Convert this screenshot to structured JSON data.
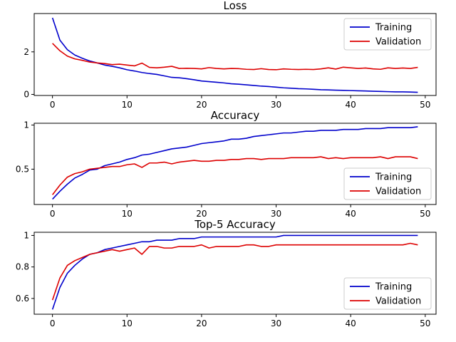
{
  "chart_data": [
    {
      "type": "line",
      "title": "Loss",
      "xlabel": "",
      "ylabel": "",
      "xlim": [
        -2.45,
        51.45
      ],
      "ylim": [
        -0.05,
        3.8
      ],
      "xticks": [
        0,
        10,
        20,
        30,
        40,
        50
      ],
      "yticks": [
        0,
        2
      ],
      "legend_position": "upper right",
      "grid": false,
      "series": [
        {
          "name": "Training",
          "color": "#0000cc",
          "x": [
            0,
            1,
            2,
            3,
            4,
            5,
            6,
            7,
            8,
            9,
            10,
            11,
            12,
            13,
            14,
            15,
            16,
            17,
            18,
            19,
            20,
            21,
            22,
            23,
            24,
            25,
            26,
            27,
            28,
            29,
            30,
            31,
            32,
            33,
            34,
            35,
            36,
            37,
            38,
            39,
            40,
            41,
            42,
            43,
            44,
            45,
            46,
            47,
            48,
            49
          ],
          "values": [
            3.6,
            2.55,
            2.1,
            1.85,
            1.7,
            1.57,
            1.48,
            1.38,
            1.32,
            1.25,
            1.16,
            1.1,
            1.03,
            0.98,
            0.94,
            0.87,
            0.8,
            0.78,
            0.74,
            0.69,
            0.63,
            0.6,
            0.57,
            0.54,
            0.5,
            0.48,
            0.45,
            0.42,
            0.39,
            0.37,
            0.34,
            0.31,
            0.29,
            0.27,
            0.26,
            0.24,
            0.22,
            0.21,
            0.2,
            0.19,
            0.18,
            0.17,
            0.16,
            0.15,
            0.14,
            0.13,
            0.12,
            0.12,
            0.11,
            0.1
          ]
        },
        {
          "name": "Validation",
          "color": "#dd0000",
          "x": [
            0,
            1,
            2,
            3,
            4,
            5,
            6,
            7,
            8,
            9,
            10,
            11,
            12,
            13,
            14,
            15,
            16,
            17,
            18,
            19,
            20,
            21,
            22,
            23,
            24,
            25,
            26,
            27,
            28,
            29,
            30,
            31,
            32,
            33,
            34,
            35,
            36,
            37,
            38,
            39,
            40,
            41,
            42,
            43,
            44,
            45,
            46,
            47,
            48,
            49
          ],
          "values": [
            2.4,
            2.05,
            1.8,
            1.67,
            1.6,
            1.52,
            1.48,
            1.45,
            1.4,
            1.42,
            1.38,
            1.34,
            1.47,
            1.27,
            1.25,
            1.28,
            1.32,
            1.22,
            1.23,
            1.22,
            1.2,
            1.26,
            1.22,
            1.2,
            1.22,
            1.21,
            1.18,
            1.17,
            1.21,
            1.17,
            1.16,
            1.2,
            1.18,
            1.17,
            1.18,
            1.17,
            1.2,
            1.25,
            1.19,
            1.28,
            1.25,
            1.22,
            1.24,
            1.2,
            1.18,
            1.25,
            1.22,
            1.24,
            1.22,
            1.27
          ]
        }
      ]
    },
    {
      "type": "line",
      "title": "Accuracy",
      "xlabel": "",
      "ylabel": "",
      "xlim": [
        -2.45,
        51.45
      ],
      "ylim": [
        0.1,
        1.02
      ],
      "xticks": [
        0,
        10,
        20,
        30,
        40,
        50
      ],
      "yticks": [
        0.5,
        1.0
      ],
      "legend_position": "lower right",
      "grid": false,
      "series": [
        {
          "name": "Training",
          "color": "#0000cc",
          "x": [
            0,
            1,
            2,
            3,
            4,
            5,
            6,
            7,
            8,
            9,
            10,
            11,
            12,
            13,
            14,
            15,
            16,
            17,
            18,
            19,
            20,
            21,
            22,
            23,
            24,
            25,
            26,
            27,
            28,
            29,
            30,
            31,
            32,
            33,
            34,
            35,
            36,
            37,
            38,
            39,
            40,
            41,
            42,
            43,
            44,
            45,
            46,
            47,
            48,
            49
          ],
          "values": [
            0.16,
            0.25,
            0.33,
            0.4,
            0.44,
            0.49,
            0.5,
            0.54,
            0.56,
            0.58,
            0.61,
            0.63,
            0.66,
            0.67,
            0.69,
            0.71,
            0.73,
            0.74,
            0.75,
            0.77,
            0.79,
            0.8,
            0.81,
            0.82,
            0.84,
            0.84,
            0.85,
            0.87,
            0.88,
            0.89,
            0.9,
            0.91,
            0.91,
            0.92,
            0.93,
            0.93,
            0.94,
            0.94,
            0.94,
            0.95,
            0.95,
            0.95,
            0.96,
            0.96,
            0.96,
            0.97,
            0.97,
            0.97,
            0.97,
            0.98
          ]
        },
        {
          "name": "Validation",
          "color": "#dd0000",
          "x": [
            0,
            1,
            2,
            3,
            4,
            5,
            6,
            7,
            8,
            9,
            10,
            11,
            12,
            13,
            14,
            15,
            16,
            17,
            18,
            19,
            20,
            21,
            22,
            23,
            24,
            25,
            26,
            27,
            28,
            29,
            30,
            31,
            32,
            33,
            34,
            35,
            36,
            37,
            38,
            39,
            40,
            41,
            42,
            43,
            44,
            45,
            46,
            47,
            48,
            49
          ],
          "values": [
            0.21,
            0.32,
            0.41,
            0.45,
            0.47,
            0.5,
            0.51,
            0.52,
            0.53,
            0.53,
            0.55,
            0.56,
            0.52,
            0.57,
            0.57,
            0.58,
            0.56,
            0.58,
            0.59,
            0.6,
            0.59,
            0.59,
            0.6,
            0.6,
            0.61,
            0.61,
            0.62,
            0.62,
            0.61,
            0.62,
            0.62,
            0.62,
            0.63,
            0.63,
            0.63,
            0.63,
            0.64,
            0.62,
            0.63,
            0.62,
            0.63,
            0.63,
            0.63,
            0.63,
            0.64,
            0.62,
            0.64,
            0.64,
            0.64,
            0.62
          ]
        }
      ]
    },
    {
      "type": "line",
      "title": "Top-5 Accuracy",
      "xlabel": "",
      "ylabel": "",
      "xlim": [
        -2.45,
        51.45
      ],
      "ylim": [
        0.5,
        1.02
      ],
      "xticks": [
        0,
        10,
        20,
        30,
        40,
        50
      ],
      "yticks": [
        0.6,
        0.8,
        1.0
      ],
      "legend_position": "lower right",
      "grid": false,
      "series": [
        {
          "name": "Training",
          "color": "#0000cc",
          "x": [
            0,
            1,
            2,
            3,
            4,
            5,
            6,
            7,
            8,
            9,
            10,
            11,
            12,
            13,
            14,
            15,
            16,
            17,
            18,
            19,
            20,
            21,
            22,
            23,
            24,
            25,
            26,
            27,
            28,
            29,
            30,
            31,
            32,
            33,
            34,
            35,
            36,
            37,
            38,
            39,
            40,
            41,
            42,
            43,
            44,
            45,
            46,
            47,
            48,
            49
          ],
          "values": [
            0.53,
            0.67,
            0.76,
            0.81,
            0.85,
            0.88,
            0.89,
            0.91,
            0.92,
            0.93,
            0.94,
            0.95,
            0.96,
            0.96,
            0.97,
            0.97,
            0.97,
            0.98,
            0.98,
            0.98,
            0.99,
            0.99,
            0.99,
            0.99,
            0.99,
            0.99,
            0.99,
            0.99,
            0.99,
            0.99,
            0.99,
            1.0,
            1.0,
            1.0,
            1.0,
            1.0,
            1.0,
            1.0,
            1.0,
            1.0,
            1.0,
            1.0,
            1.0,
            1.0,
            1.0,
            1.0,
            1.0,
            1.0,
            1.0,
            1.0
          ]
        },
        {
          "name": "Validation",
          "color": "#dd0000",
          "x": [
            0,
            1,
            2,
            3,
            4,
            5,
            6,
            7,
            8,
            9,
            10,
            11,
            12,
            13,
            14,
            15,
            16,
            17,
            18,
            19,
            20,
            21,
            22,
            23,
            24,
            25,
            26,
            27,
            28,
            29,
            30,
            31,
            32,
            33,
            34,
            35,
            36,
            37,
            38,
            39,
            40,
            41,
            42,
            43,
            44,
            45,
            46,
            47,
            48,
            49
          ],
          "values": [
            0.59,
            0.73,
            0.81,
            0.84,
            0.86,
            0.88,
            0.89,
            0.9,
            0.91,
            0.9,
            0.91,
            0.92,
            0.88,
            0.93,
            0.93,
            0.92,
            0.92,
            0.93,
            0.93,
            0.93,
            0.94,
            0.92,
            0.93,
            0.93,
            0.93,
            0.93,
            0.94,
            0.94,
            0.93,
            0.93,
            0.94,
            0.94,
            0.94,
            0.94,
            0.94,
            0.94,
            0.94,
            0.94,
            0.94,
            0.94,
            0.94,
            0.94,
            0.94,
            0.94,
            0.94,
            0.94,
            0.94,
            0.94,
            0.95,
            0.94
          ]
        }
      ]
    }
  ]
}
